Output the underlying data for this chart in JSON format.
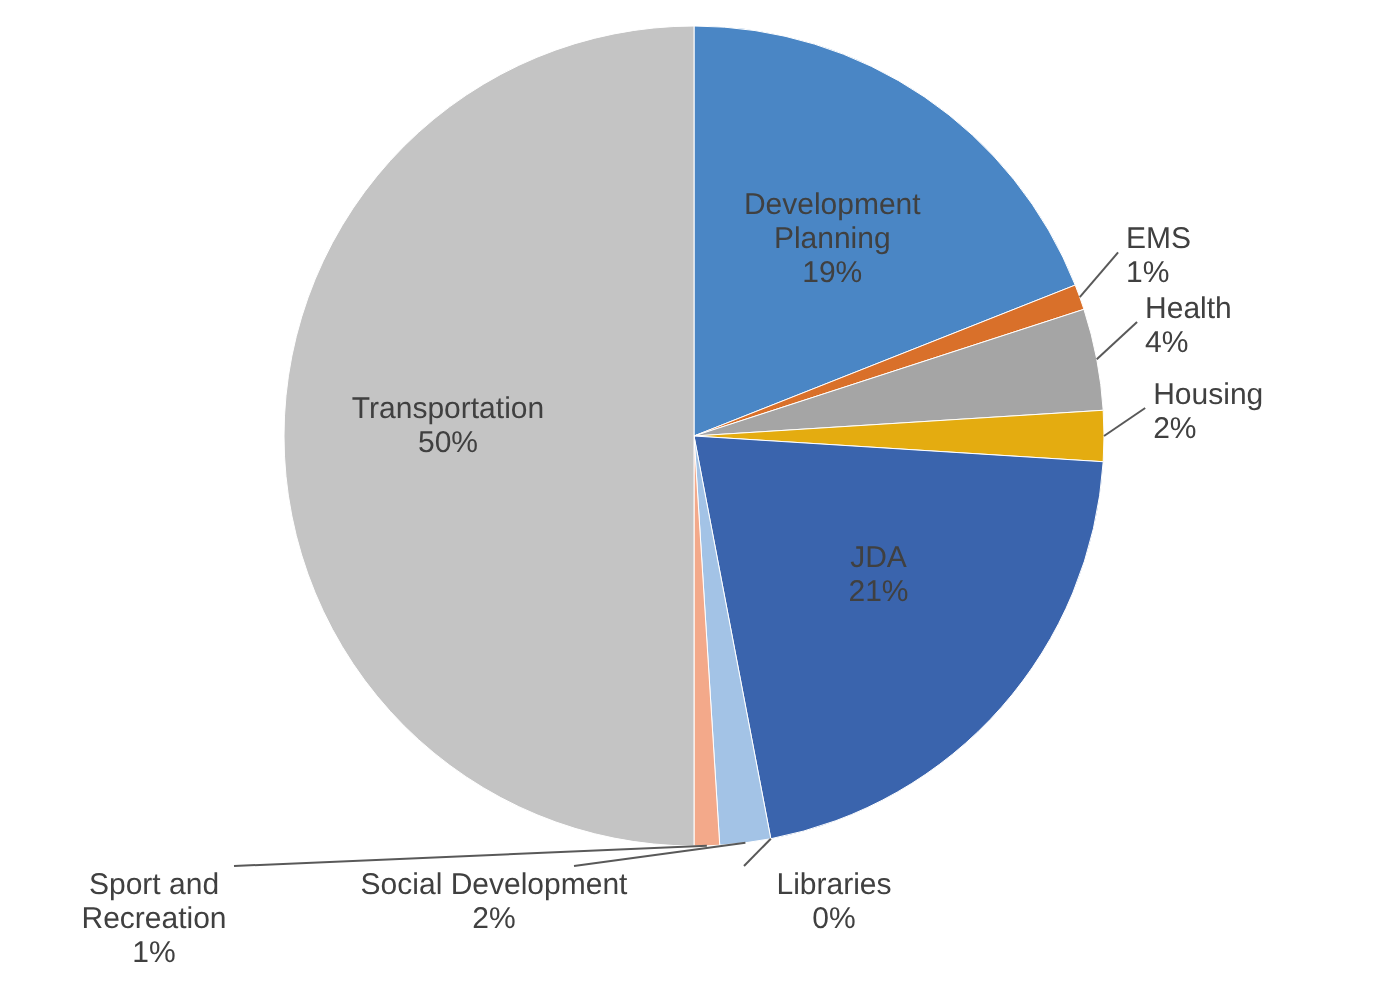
{
  "chart_data": {
    "type": "pie",
    "categories": [
      "Development Planning",
      "EMS",
      "Health",
      "Housing",
      "JDA",
      "Libraries",
      "Social Development",
      "Sport and Recreation",
      "Transportation"
    ],
    "values": [
      19,
      1,
      4,
      2,
      21,
      0,
      2,
      1,
      50
    ],
    "value_labels": [
      "19%",
      "1%",
      "4%",
      "2%",
      "21%",
      "0%",
      "2%",
      "1%",
      "50%"
    ],
    "colors": [
      "#4a86c5",
      "#d9702a",
      "#a5a5a5",
      "#e4ac10",
      "#3a64ad",
      "#6fa84a",
      "#a3c3e6",
      "#f3a98a",
      "#c4c4c4"
    ]
  }
}
